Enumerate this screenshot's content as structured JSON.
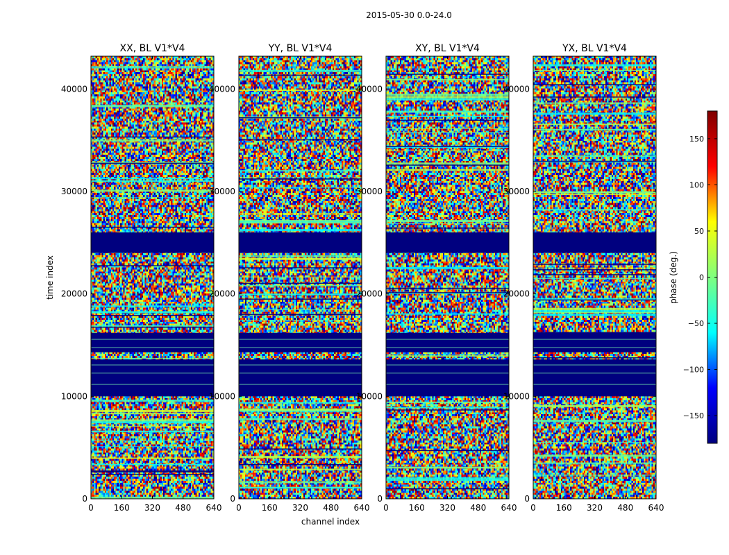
{
  "chart_data": {
    "type": "heatmap",
    "suptitle": "2015-05-30 0.0-24.0",
    "xlabel": "channel index",
    "ylabel": "time index",
    "xlim": [
      0,
      640
    ],
    "ylim": [
      0,
      43200
    ],
    "xticks": [
      0,
      160,
      320,
      480,
      640
    ],
    "yticks": [
      0,
      10000,
      20000,
      30000,
      40000
    ],
    "panels": [
      {
        "title": "XX, BL V1*V4",
        "pol": "XX",
        "baseline": "V1*V4"
      },
      {
        "title": "YY, BL V1*V4",
        "pol": "YY",
        "baseline": "V1*V4"
      },
      {
        "title": "XY, BL V1*V4",
        "pol": "XY",
        "baseline": "V1*V4"
      },
      {
        "title": "YX, BL V1*V4",
        "pol": "YX",
        "baseline": "V1*V4"
      }
    ],
    "flagged_time_ranges": [
      [
        10000,
        13600
      ],
      [
        14300,
        16200
      ],
      [
        24000,
        26000
      ]
    ],
    "colorbar": {
      "label": "phase (deg.)",
      "range": [
        -180,
        180
      ],
      "ticks": [
        -150,
        -100,
        -50,
        0,
        50,
        100,
        150
      ],
      "colormap": "jet",
      "colors": [
        "#00007f",
        "#0000ff",
        "#00ffff",
        "#7fff7f",
        "#ffff00",
        "#ff0000",
        "#7f0000"
      ]
    }
  }
}
